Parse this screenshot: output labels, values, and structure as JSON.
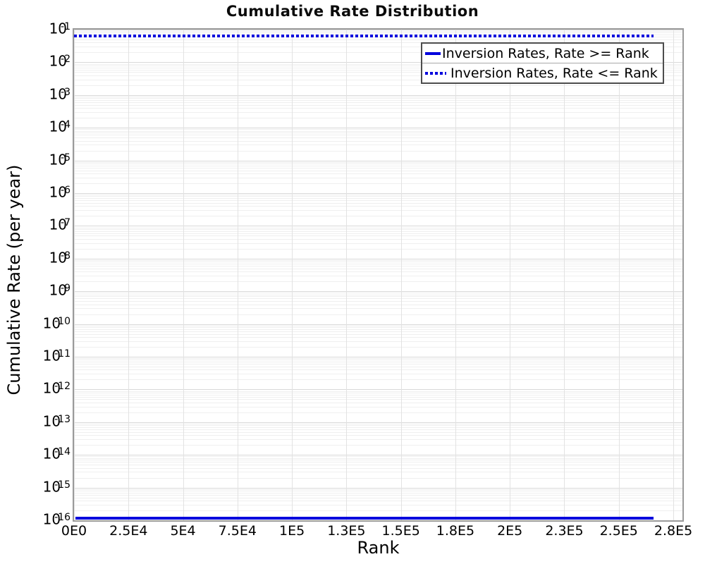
{
  "chart_data": {
    "type": "line",
    "title": "Cumulative Rate Distribution",
    "xlabel": "Rank",
    "ylabel": "Cumulative Rate (per year)",
    "x_axis": {
      "min": 0,
      "max": 279200,
      "tick_values": [
        0,
        25000,
        50000,
        75000,
        100000,
        125000,
        150000,
        175000,
        200000,
        225000,
        250000,
        275000
      ],
      "tick_labels": [
        "0E0",
        "2.5E4",
        "5E4",
        "7.5E4",
        "1E5",
        "1.3E5",
        "1.5E5",
        "1.8E5",
        "2E5",
        "2.3E5",
        "2.5E5",
        "2.8E5"
      ]
    },
    "y_axis": {
      "scale": "log",
      "min": 1e-16,
      "max": 0.1,
      "tick_base": "10",
      "tick_exponents": [
        -1,
        -2,
        -3,
        -4,
        -5,
        -6,
        -7,
        -8,
        -9,
        -10,
        -11,
        -12,
        -13,
        -14,
        -15,
        -16
      ]
    },
    "grid": {
      "major_color": "#d9d9d9",
      "minor_color": "#efefef",
      "vertical_color": "#e2e2e2"
    },
    "frame_color": "#9a9a9a",
    "legend": {
      "position": "top-right",
      "border_color": "#4d4d4d"
    },
    "series": [
      {
        "name": "Inversion Rates, Rate >= Rank",
        "line_style": "solid",
        "color": "#0000dd",
        "points": [
          [
            0,
            0.063
          ],
          [
            700,
            1e-16
          ],
          [
            266000,
            1e-16
          ]
        ]
      },
      {
        "name": "Inversion Rates, Rate <= Rank",
        "line_style": "dotted",
        "color": "#0000dd",
        "points": [
          [
            0,
            0.063
          ],
          [
            266000,
            0.063
          ]
        ]
      }
    ]
  }
}
